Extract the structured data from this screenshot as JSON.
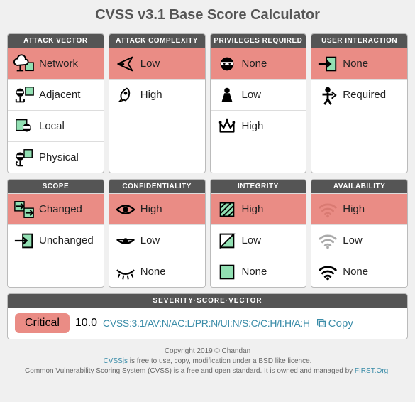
{
  "title": "CVSS v3.1 Base Score Calculator",
  "colors": {
    "selected_bg": "#ea8c85",
    "header_bg": "#555555",
    "accent_green": "#92e0b3",
    "link": "#3a8ca8"
  },
  "metrics_row1": [
    {
      "header": "ATTACK VECTOR",
      "options": [
        {
          "icon": "cloud",
          "label": "Network",
          "selected": true
        },
        {
          "icon": "hub",
          "label": "Adjacent",
          "selected": false
        },
        {
          "icon": "local",
          "label": "Local",
          "selected": false
        },
        {
          "icon": "hand",
          "label": "Physical",
          "selected": false
        }
      ]
    },
    {
      "header": "ATTACK COMPLEXITY",
      "options": [
        {
          "icon": "plane",
          "label": "Low",
          "selected": true
        },
        {
          "icon": "rocket",
          "label": "High",
          "selected": false
        }
      ]
    },
    {
      "header": "PRIVILEGES REQUIRED",
      "options": [
        {
          "icon": "ninja",
          "label": "None",
          "selected": true
        },
        {
          "icon": "pawn",
          "label": "Low",
          "selected": false
        },
        {
          "icon": "crown",
          "label": "High",
          "selected": false
        }
      ]
    },
    {
      "header": "USER INTERACTION",
      "options": [
        {
          "icon": "enter",
          "label": "None",
          "selected": true
        },
        {
          "icon": "person",
          "label": "Required",
          "selected": false
        }
      ]
    }
  ],
  "metrics_row2": [
    {
      "header": "SCOPE",
      "options": [
        {
          "icon": "transfer",
          "label": "Changed",
          "selected": true
        },
        {
          "icon": "enter",
          "label": "Unchanged",
          "selected": false
        }
      ]
    },
    {
      "header": "CONFIDENTIALITY",
      "options": [
        {
          "icon": "eye-open",
          "label": "High",
          "selected": true
        },
        {
          "icon": "eye-half",
          "label": "Low",
          "selected": false
        },
        {
          "icon": "eye-closed",
          "label": "None",
          "selected": false
        }
      ]
    },
    {
      "header": "INTEGRITY",
      "options": [
        {
          "icon": "hatch",
          "label": "High",
          "selected": true
        },
        {
          "icon": "half-square",
          "label": "Low",
          "selected": false
        },
        {
          "icon": "empty-square",
          "label": "None",
          "selected": false
        }
      ]
    },
    {
      "header": "AVAILABILITY",
      "options": [
        {
          "icon": "wifi-red",
          "label": "High",
          "selected": true
        },
        {
          "icon": "wifi-gray",
          "label": "Low",
          "selected": false
        },
        {
          "icon": "wifi-black",
          "label": "None",
          "selected": false
        }
      ]
    }
  ],
  "result": {
    "header": "SEVERITY·SCORE·VECTOR",
    "severity": "Critical",
    "score": "10.0",
    "vector": "CVSS:3.1/AV:N/AC:L/PR:N/UI:N/S:C/C:H/I:H/A:H",
    "copy_label": "Copy"
  },
  "footer": {
    "line1": "Copyright 2019 © Chandan",
    "link1_text": "CVSSjs",
    "line2_rest": " is free to use, copy, modification under a BSD like licence.",
    "line3_pre": "Common Vulnerability Scoring System (CVSS) is a free and open standard. It is owned and managed by ",
    "link2_text": "FIRST.Org",
    "line3_post": "."
  }
}
